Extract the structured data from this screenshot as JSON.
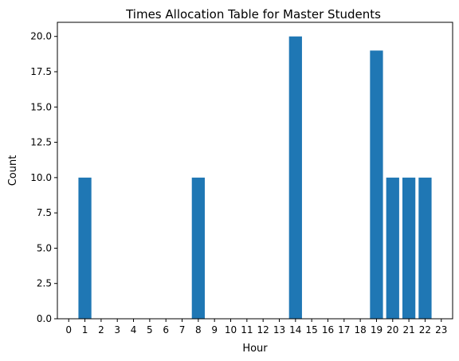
{
  "chart_data": {
    "type": "bar",
    "title": "Times Allocation Table for Master Students",
    "xlabel": "Hour",
    "ylabel": "Count",
    "categories": [
      "0",
      "1",
      "2",
      "3",
      "4",
      "5",
      "6",
      "7",
      "8",
      "9",
      "10",
      "11",
      "12",
      "13",
      "14",
      "15",
      "16",
      "17",
      "18",
      "19",
      "20",
      "21",
      "22",
      "23"
    ],
    "values": [
      0,
      10,
      0,
      0,
      0,
      0,
      0,
      0,
      10,
      0,
      0,
      0,
      0,
      0,
      20,
      0,
      0,
      0,
      0,
      19,
      10,
      10,
      10,
      0
    ],
    "ylim": [
      0,
      21
    ],
    "yticks": [
      "0.0",
      "2.5",
      "5.0",
      "7.5",
      "10.0",
      "12.5",
      "15.0",
      "17.5",
      "20.0"
    ],
    "ytick_values": [
      0,
      2.5,
      5,
      7.5,
      10,
      12.5,
      15,
      17.5,
      20
    ],
    "bar_color": "#1f77b4",
    "grid": false
  }
}
